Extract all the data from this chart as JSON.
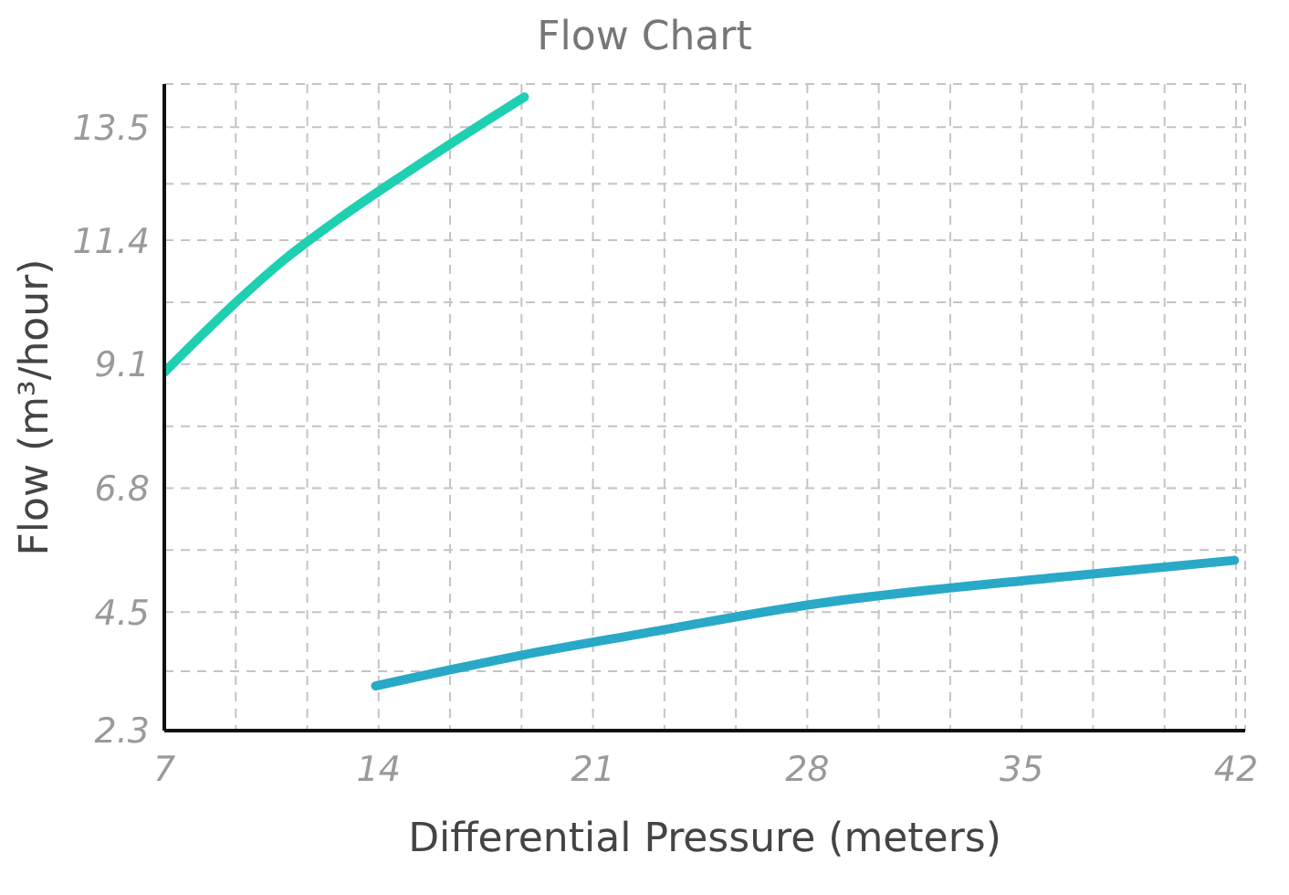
{
  "chart_data": {
    "type": "line",
    "title": "Flow Chart",
    "xlabel": "Differential Pressure (meters)",
    "ylabel": "Flow (m³/hour)",
    "xlim": [
      7,
      42.3
    ],
    "ylim": [
      2.3,
      14.3
    ],
    "xticks": [
      7,
      {
        "value": 9.333,
        "label": null
      },
      {
        "value": 11.667,
        "label": null
      },
      14,
      {
        "value": 16.333,
        "label": null
      },
      {
        "value": 18.667,
        "label": null
      },
      21,
      {
        "value": 23.333,
        "label": null
      },
      {
        "value": 25.667,
        "label": null
      },
      28,
      {
        "value": 30.333,
        "label": null
      },
      {
        "value": 32.667,
        "label": null
      },
      35,
      {
        "value": 37.333,
        "label": null
      },
      {
        "value": 39.667,
        "label": null
      },
      42
    ],
    "yticks": [
      2.3,
      {
        "value": 3.4,
        "label": null
      },
      4.5,
      {
        "value": 5.65,
        "label": null
      },
      6.8,
      {
        "value": 7.95,
        "label": null
      },
      9.1,
      {
        "value": 10.25,
        "label": null
      },
      11.4,
      {
        "value": 12.45,
        "label": null
      },
      13.5
    ],
    "grid": true,
    "line_style": "solid",
    "marker": "none",
    "series": [
      {
        "color": "#1fcfb2",
        "x": [
          7,
          9.06,
          10.94,
          12.83,
          14.77,
          16.65,
          18.76
        ],
        "values": [
          8.95,
          10.1,
          11.05,
          11.85,
          12.6,
          13.3,
          14.06
        ]
      },
      {
        "color": "#29a9c7",
        "x": [
          13.9,
          18.76,
          22.5,
          28.36,
          36.07,
          41.95
        ],
        "values": [
          3.13,
          3.71,
          4.09,
          4.66,
          5.14,
          5.46
        ]
      }
    ]
  }
}
